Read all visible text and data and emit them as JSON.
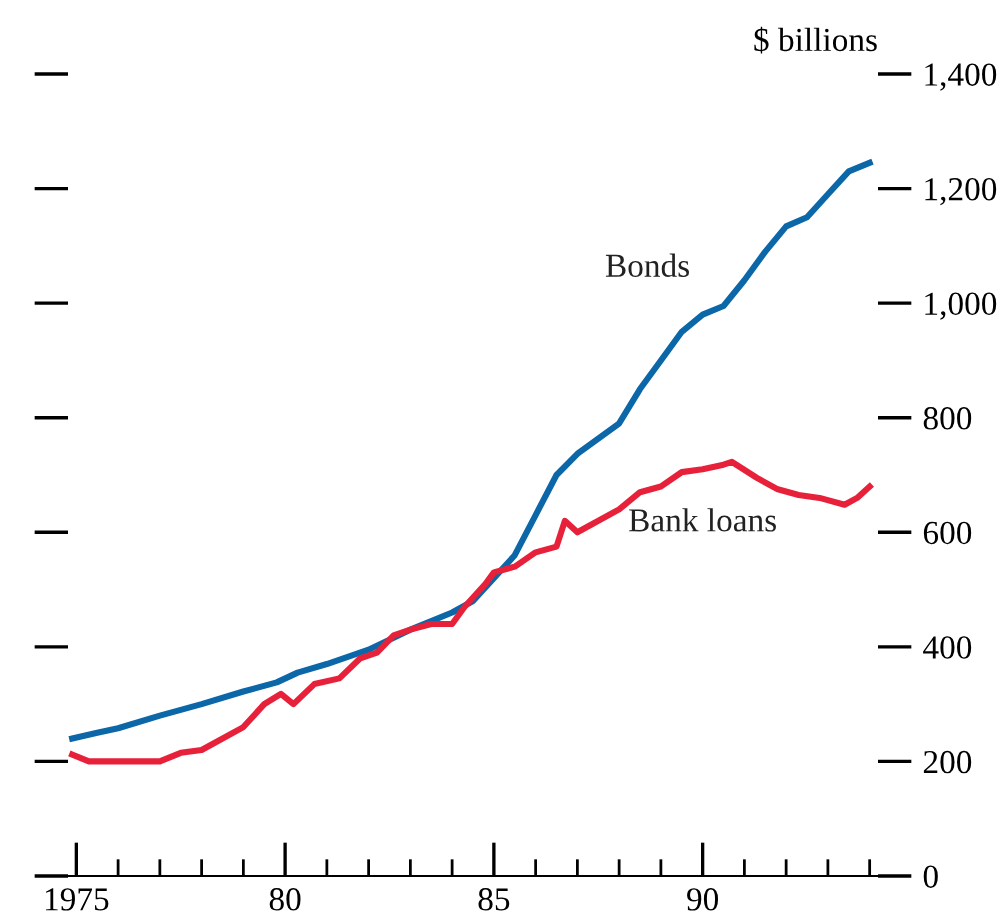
{
  "chart_data": {
    "type": "line",
    "ylabel": "$ billions",
    "series": [
      {
        "name": "Bonds",
        "color": "#0b67a8",
        "x": [
          1974.9,
          1975.5,
          1976,
          1977,
          1978,
          1979,
          1979.8,
          1980.3,
          1981,
          1982,
          1983,
          1984,
          1984.5,
          1985,
          1985.5,
          1986,
          1986.5,
          1987,
          1988,
          1988.5,
          1989,
          1989.5,
          1990,
          1990.5,
          1991,
          1991.5,
          1992,
          1992.5,
          1993,
          1993.5,
          1994
        ],
        "values": [
          240,
          250,
          258,
          280,
          300,
          322,
          338,
          355,
          370,
          395,
          430,
          460,
          480,
          520,
          560,
          630,
          700,
          737,
          790,
          850,
          900,
          950,
          980,
          995,
          1040,
          1090,
          1134,
          1150,
          1190,
          1230,
          1245
        ]
      },
      {
        "name": "Bank loans",
        "color": "#e8213a",
        "x": [
          1974.9,
          1975.3,
          1977,
          1977.5,
          1978,
          1979,
          1979.5,
          1979.9,
          1980.2,
          1980.7,
          1981.3,
          1981.8,
          1982.2,
          1982.6,
          1983,
          1983.5,
          1984,
          1984.3,
          1984.8,
          1985,
          1985.5,
          1986,
          1986.5,
          1986.7,
          1987,
          1988,
          1988.5,
          1989,
          1989.5,
          1990,
          1990.5,
          1990.7,
          1991.3,
          1991.8,
          1992.3,
          1992.8,
          1993.4,
          1993.7,
          1994
        ],
        "values": [
          212,
          200,
          200,
          215,
          220,
          260,
          300,
          318,
          300,
          335,
          345,
          380,
          390,
          420,
          430,
          440,
          440,
          470,
          510,
          530,
          540,
          565,
          575,
          620,
          600,
          640,
          670,
          680,
          705,
          710,
          718,
          723,
          695,
          675,
          665,
          660,
          648,
          660,
          680
        ]
      }
    ],
    "xlim": [
      1974.8,
      1994.2
    ],
    "xticks": [
      {
        "value": 1975,
        "label": "1975"
      },
      {
        "value": 1976,
        "label": null
      },
      {
        "value": 1977,
        "label": null
      },
      {
        "value": 1978,
        "label": null
      },
      {
        "value": 1979,
        "label": null
      },
      {
        "value": 1980,
        "label": "80"
      },
      {
        "value": 1981,
        "label": null
      },
      {
        "value": 1982,
        "label": null
      },
      {
        "value": 1983,
        "label": null
      },
      {
        "value": 1984,
        "label": null
      },
      {
        "value": 1985,
        "label": "85"
      },
      {
        "value": 1986,
        "label": null
      },
      {
        "value": 1987,
        "label": null
      },
      {
        "value": 1988,
        "label": null
      },
      {
        "value": 1989,
        "label": null
      },
      {
        "value": 1990,
        "label": "90"
      },
      {
        "value": 1991,
        "label": null
      },
      {
        "value": 1992,
        "label": null
      },
      {
        "value": 1993,
        "label": null
      },
      {
        "value": 1994,
        "label": null
      }
    ],
    "ylim": [
      0,
      1400
    ],
    "yticks": [
      0,
      200,
      400,
      600,
      800,
      {
        "value": 1000,
        "label": "1,000"
      },
      {
        "value": 1200,
        "label": "1,200"
      },
      {
        "value": 1400,
        "label": "1,400"
      }
    ],
    "grid": false,
    "legend": false,
    "marker": "none",
    "line_style": "solid"
  }
}
